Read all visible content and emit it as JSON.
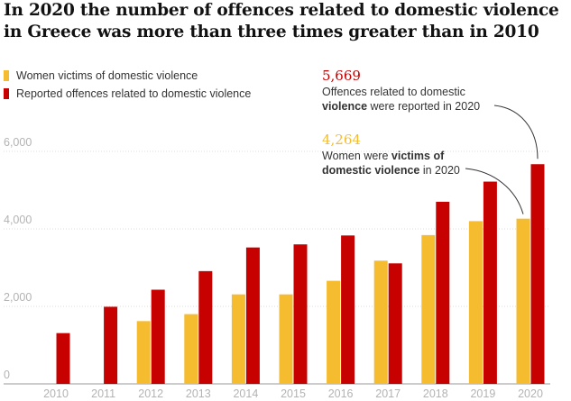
{
  "title": "In 2020 the number of offences related to domestic violence in Greece was more than three times greater than in 2010",
  "legend": [
    {
      "label": "Women victims of domestic violence",
      "color": "#f5bc2f"
    },
    {
      "label": "Reported offences related to domestic violence",
      "color": "#c70000"
    }
  ],
  "annotations": {
    "offences": {
      "value": "5,669",
      "text_a": "Offences related to domestic",
      "text_b_bold": "violence",
      "text_b_rest": " were reported in 2020",
      "color": "#c70000"
    },
    "victims": {
      "value": "4,264",
      "text_a_plain": "Women were ",
      "text_a_bold": "victims of",
      "text_b_bold": "domestic violence",
      "text_b_rest": " in 2020",
      "color": "#f5bc2f"
    }
  },
  "chart_data": {
    "type": "bar",
    "title": "In 2020 the number of offences related to domestic violence in Greece was more than three times greater than in 2010",
    "xlabel": "",
    "ylabel": "",
    "categories": [
      "2010",
      "2011",
      "2012",
      "2013",
      "2014",
      "2015",
      "2016",
      "2017",
      "2018",
      "2019",
      "2020"
    ],
    "series": [
      {
        "name": "Women victims of domestic violence",
        "color": "#f5bc2f",
        "values": [
          null,
          null,
          1620,
          1800,
          2310,
          2310,
          2660,
          3180,
          3840,
          4200,
          4264
        ]
      },
      {
        "name": "Reported offences related to domestic violence",
        "color": "#c70000",
        "values": [
          1310,
          1990,
          2430,
          2910,
          3520,
          3600,
          3830,
          3110,
          4700,
          5220,
          5669
        ]
      }
    ],
    "yticks": [
      0,
      2000,
      4000,
      6000
    ],
    "ytick_labels": [
      "0",
      "2,000",
      "4,000",
      "6,000"
    ],
    "ylim": [
      0,
      6500
    ],
    "grid": true
  }
}
